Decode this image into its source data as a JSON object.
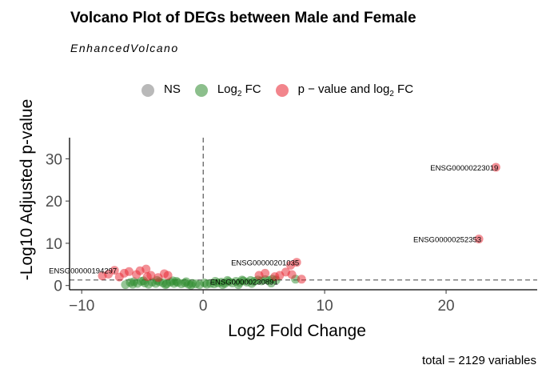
{
  "chart_data": {
    "type": "scatter",
    "title": "Volcano Plot of DEGs between Male and Female",
    "subtitle": "EnhancedVolcano",
    "xlabel": "Log2 Fold Change",
    "ylabel": "-Log10 Adjusted p-value",
    "xlim": [
      -11,
      27.5
    ],
    "ylim": [
      -1,
      35
    ],
    "x_ticks": [
      -10,
      0,
      10,
      20
    ],
    "y_ticks": [
      0,
      10,
      20,
      30
    ],
    "fc_cutoff": 0,
    "p_cutoff_line": 1.3,
    "grid": false,
    "legend_position": "top",
    "caption": "total = 2129 variables",
    "colors": {
      "NS": "#7f7f7f",
      "FC": "#2e8b2e",
      "PFC": "#e8212e"
    },
    "legend": [
      {
        "key": "NS",
        "label_main": "NS",
        "label_sub": "",
        "label_tail": "",
        "color": "#7f7f7f"
      },
      {
        "key": "FC",
        "label_main": "Log",
        "label_sub": "2",
        "label_tail": " FC",
        "color": "#2e8b2e"
      },
      {
        "key": "PFC",
        "label_main": "p − value and log",
        "label_sub": "2",
        "label_tail": " FC",
        "color": "#e8212e"
      }
    ],
    "series": [
      {
        "name": "p − value and log2 FC",
        "key": "PFC",
        "points": [
          [
            24.1,
            28.0
          ],
          [
            22.7,
            11.0
          ],
          [
            7.7,
            5.5
          ],
          [
            7.2,
            4.8
          ],
          [
            6.8,
            3.2
          ],
          [
            7.3,
            2.6
          ],
          [
            8.1,
            1.5
          ],
          [
            6.3,
            2.4
          ],
          [
            5.9,
            2.1
          ],
          [
            -7.3,
            3.6
          ],
          [
            -7.8,
            2.7
          ],
          [
            -8.3,
            2.3
          ],
          [
            -6.5,
            2.9
          ],
          [
            -6.1,
            3.3
          ],
          [
            -5.2,
            3.5
          ],
          [
            -4.7,
            3.9
          ],
          [
            -5.5,
            2.6
          ],
          [
            -4.3,
            2.4
          ],
          [
            -3.2,
            2.8
          ],
          [
            -2.9,
            2.4
          ],
          [
            -3.7,
            1.9
          ],
          [
            -6.9,
            2.0
          ],
          [
            -4.6,
            2.1
          ],
          [
            4.6,
            2.4
          ],
          [
            5.1,
            2.9
          ]
        ]
      },
      {
        "name": "Log2 FC",
        "key": "FC",
        "points": [
          [
            -6.0,
            0.7
          ],
          [
            -5.7,
            0.9
          ],
          [
            -5.4,
            0.5
          ],
          [
            -5.1,
            1.0
          ],
          [
            -4.8,
            0.6
          ],
          [
            -4.5,
            0.3
          ],
          [
            -4.2,
            0.8
          ],
          [
            -3.9,
            0.5
          ],
          [
            -3.6,
            0.9
          ],
          [
            -3.3,
            0.6
          ],
          [
            -3.0,
            0.4
          ],
          [
            -2.7,
            0.8
          ],
          [
            -2.4,
            0.5
          ],
          [
            -2.1,
            0.7
          ],
          [
            -1.8,
            0.4
          ],
          [
            -1.5,
            0.6
          ],
          [
            -1.2,
            0.3
          ],
          [
            -0.9,
            0.5
          ],
          [
            -0.6,
            0.4
          ],
          [
            -0.3,
            0.2
          ],
          [
            0.3,
            0.3
          ],
          [
            0.6,
            0.5
          ],
          [
            0.9,
            0.4
          ],
          [
            1.2,
            0.6
          ],
          [
            1.5,
            0.8
          ],
          [
            1.8,
            0.5
          ],
          [
            2.1,
            0.9
          ],
          [
            2.4,
            0.6
          ],
          [
            2.7,
            1.0
          ],
          [
            3.0,
            0.7
          ],
          [
            3.3,
            1.1
          ],
          [
            3.6,
            0.8
          ],
          [
            3.9,
            1.2
          ],
          [
            4.2,
            1.0
          ],
          [
            4.5,
            1.3
          ],
          [
            4.8,
            1.1
          ],
          [
            5.1,
            1.4
          ],
          [
            5.4,
            1.2
          ],
          [
            5.7,
            1.5
          ],
          [
            6.0,
            1.3
          ],
          [
            -4.9,
            1.1
          ],
          [
            -3.8,
            1.2
          ],
          [
            -2.5,
            1.1
          ],
          [
            -1.4,
            0.9
          ],
          [
            0.1,
            0.6
          ],
          [
            1.0,
            1.0
          ],
          [
            2.0,
            1.2
          ],
          [
            3.2,
            1.3
          ],
          [
            -5.8,
            0.3
          ],
          [
            -3.1,
            0.2
          ],
          [
            -1.0,
            0.1
          ],
          [
            1.6,
            0.2
          ],
          [
            4.0,
            0.5
          ],
          [
            7.6,
            1.5
          ],
          [
            -6.4,
            0.2
          ],
          [
            -2.2,
            1.0
          ],
          [
            2.9,
            0.2
          ],
          [
            5.6,
            0.6
          ]
        ]
      }
    ],
    "labeled_points": [
      {
        "label": "ENSG00000223019",
        "x": 24.1,
        "y": 28.0,
        "anchor": "end"
      },
      {
        "label": "ENSG00000252353",
        "x": 22.7,
        "y": 11.0,
        "anchor": "end"
      },
      {
        "label": "ENSG00000201035",
        "x": 7.7,
        "y": 5.5,
        "anchor": "end"
      },
      {
        "label": "ENSG00000194297",
        "x": -7.3,
        "y": 3.6,
        "anchor": "end"
      },
      {
        "label": "ENSG00000230891",
        "x": 0.3,
        "y": 1.0,
        "anchor": "start"
      }
    ]
  }
}
